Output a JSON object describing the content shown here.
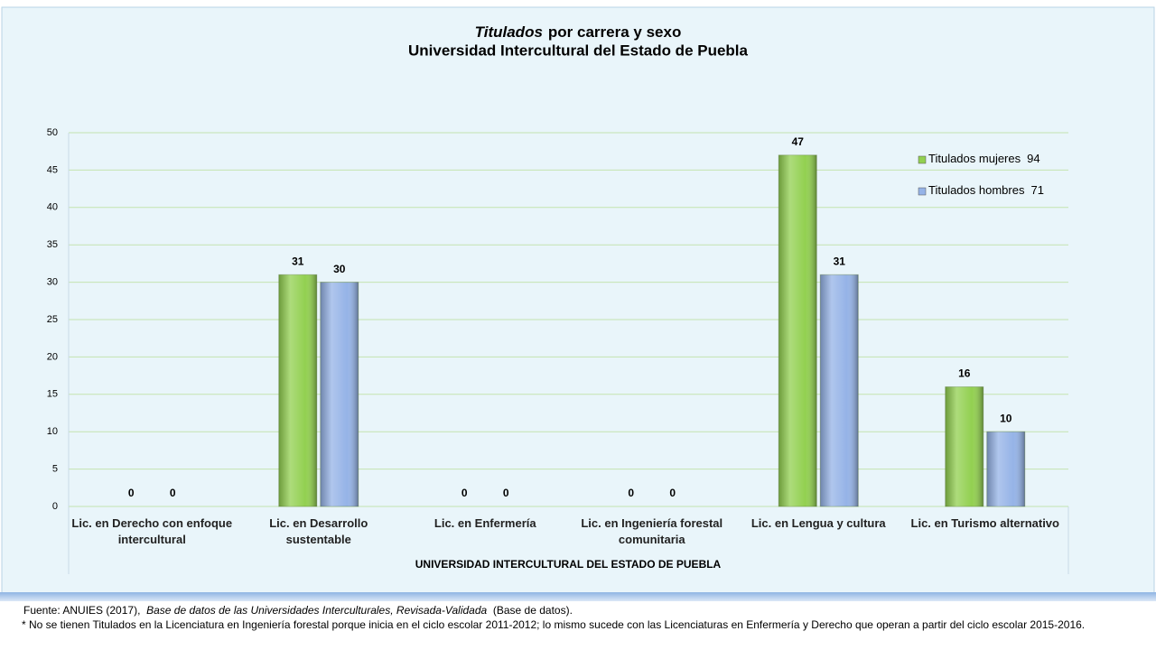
{
  "chart_data": {
    "type": "bar",
    "title": {
      "emphasis": "Titulados",
      "text": "por carrera y sexo"
    },
    "subtitle": "Universidad Intercultural del Estado de Puebla",
    "x_label": "UNIVERSIDAD INTERCULTURAL DEL ESTADO DE PUEBLA",
    "categories": [
      "Lic. en Derecho con enfoque intercultural",
      "Lic. en Desarrollo sustentable",
      "Lic. en Enfermería",
      "Lic. en Ingeniería forestal comunitaria",
      "Lic. en Lengua y cultura",
      "Lic. en Turismo alternativo"
    ],
    "series": [
      {
        "name": "Titulados mujeres",
        "total": 94,
        "color": "#92d050",
        "values": [
          0,
          31,
          0,
          0,
          47,
          16
        ]
      },
      {
        "name": "Titulados hombres",
        "total": 71,
        "color": "#95b3e7",
        "values": [
          0,
          30,
          0,
          0,
          31,
          10
        ]
      }
    ],
    "ylim": [
      0,
      50
    ],
    "yticks": [
      0,
      5,
      10,
      15,
      20,
      25,
      30,
      35,
      40,
      45,
      50
    ],
    "grid": true,
    "legend": "upper-right"
  },
  "footer": {
    "source_prefix": "Fuente: ANUIES (2017),",
    "source_title": "Base de datos de las Universidades Interculturales, Revisada-Validada",
    "source_suffix": "(Base de datos).",
    "note": "* No se tienen Titulados en la Licenciatura en Ingeniería forestal porque inicia en el ciclo escolar 2011-2012; lo mismo sucede con las Licenciaturas en Enfermería y Derecho que operan a partir del ciclo escolar 2015-2016."
  }
}
